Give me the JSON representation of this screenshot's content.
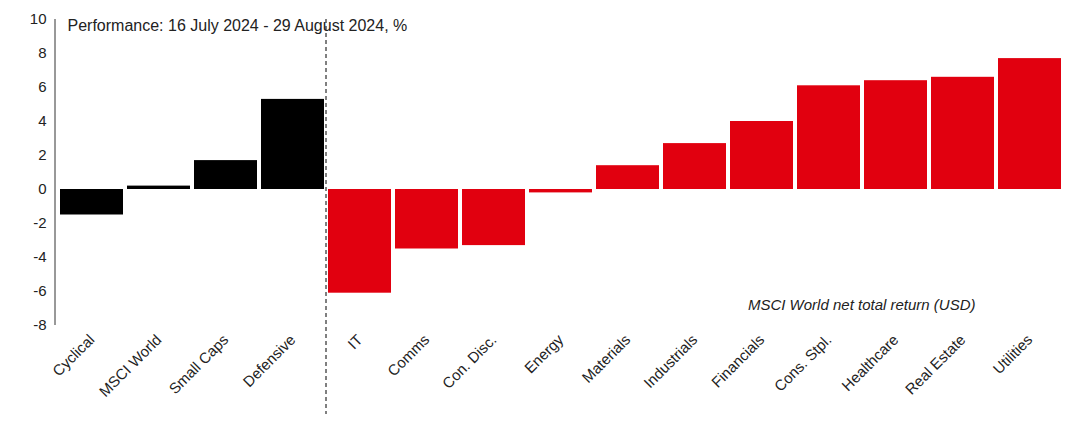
{
  "chart_data": {
    "type": "bar",
    "title": "Performance: 16 July 2024 - 29 August 2024, %",
    "annotation": "MSCI World net total return (USD)",
    "categories": [
      "Cyclical",
      "MSCI World",
      "Small Caps",
      "Defensive",
      "IT",
      "Comms",
      "Con. Disc.",
      "Energy",
      "Materials",
      "Industrials",
      "Financials",
      "Cons. Stpl.",
      "Healthcare",
      "Real Estate",
      "Utilities"
    ],
    "values": [
      -1.5,
      0.2,
      1.7,
      5.3,
      -6.1,
      -3.5,
      -3.3,
      -0.2,
      1.4,
      2.7,
      4.0,
      6.1,
      6.4,
      6.6,
      7.7
    ],
    "colors": [
      "#000000",
      "#000000",
      "#000000",
      "#000000",
      "#e1000f",
      "#e1000f",
      "#e1000f",
      "#e1000f",
      "#e1000f",
      "#e1000f",
      "#e1000f",
      "#e1000f",
      "#e1000f",
      "#e1000f",
      "#e1000f"
    ],
    "ylim": [
      -8,
      10
    ],
    "yticks": [
      -8,
      -6,
      -4,
      -2,
      0,
      2,
      4,
      6,
      8,
      10
    ],
    "grid": false
  }
}
